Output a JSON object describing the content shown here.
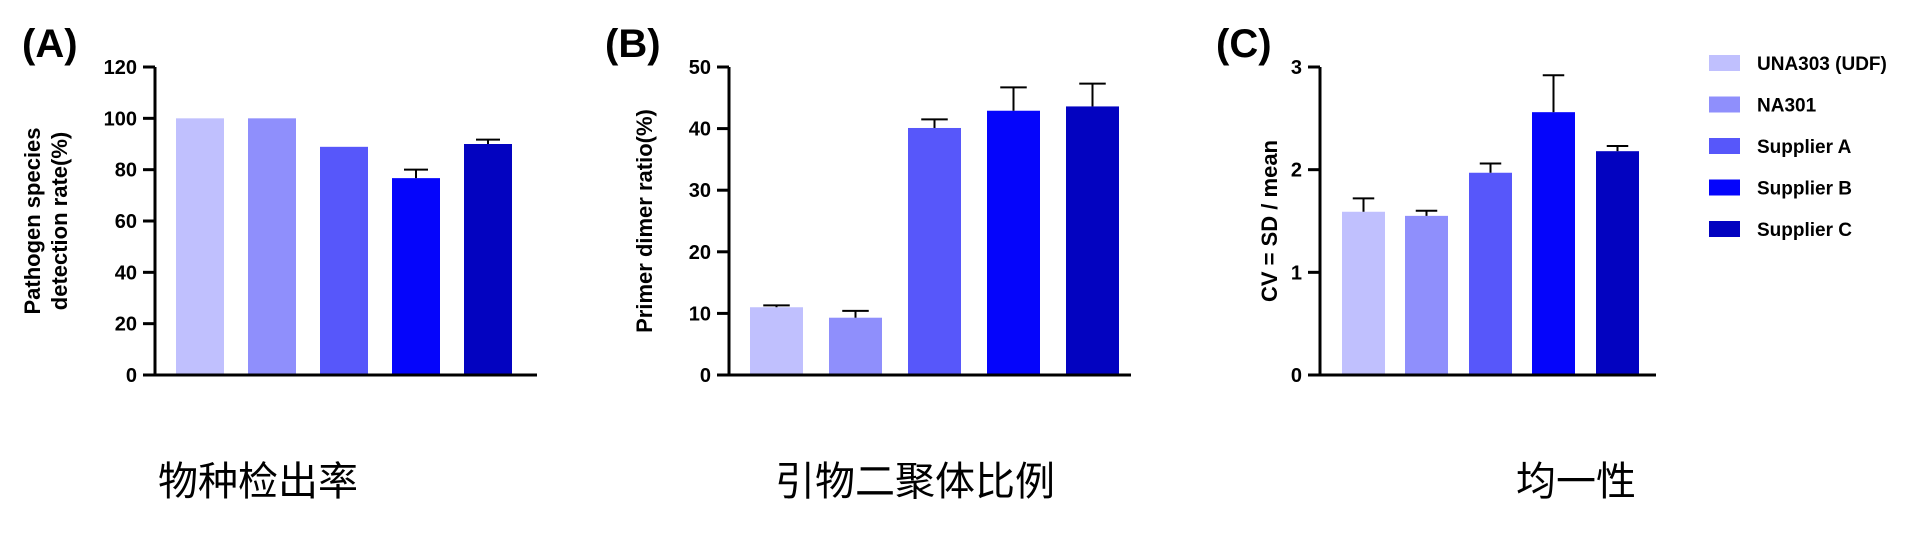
{
  "legend": {
    "position": "right",
    "entries": [
      {
        "label": "UNA303 (UDF)",
        "color": "#c0c0fe"
      },
      {
        "label": "NA301",
        "color": "#8f8ffc"
      },
      {
        "label": "Supplier A",
        "color": "#5757fa"
      },
      {
        "label": "Supplier B",
        "color": "#0505fb"
      },
      {
        "label": "Supplier C",
        "color": "#0303c0"
      }
    ]
  },
  "chart_data": [
    {
      "type": "bar",
      "panel_label": "(A)",
      "ylabel_lines": [
        "Pathogen species",
        "detection rate(%)"
      ],
      "caption": "物种检出率",
      "ylim": [
        0,
        120
      ],
      "yticks": [
        "0",
        "20",
        "40",
        "60",
        "80",
        "100",
        "120"
      ],
      "categories": [
        "UNA303 (UDF)",
        "NA301",
        "Supplier A",
        "Supplier B",
        "Supplier C"
      ],
      "values": [
        100,
        100,
        88.9,
        76.7,
        90.0
      ],
      "errors": [
        0,
        0,
        0,
        3.3,
        1.7
      ]
    },
    {
      "type": "bar",
      "panel_label": "(B)",
      "ylabel_lines": [
        "Primer dimer ratio(%)"
      ],
      "caption": "引物二聚体比例",
      "ylim": [
        0,
        50
      ],
      "yticks": [
        "0",
        "10",
        "20",
        "30",
        "40",
        "50"
      ],
      "categories": [
        "UNA303 (UDF)",
        "NA301",
        "Supplier A",
        "Supplier B",
        "Supplier C"
      ],
      "values": [
        11.0,
        9.3,
        40.1,
        42.9,
        43.6
      ],
      "errors": [
        0.3,
        1.1,
        1.4,
        3.8,
        3.7
      ]
    },
    {
      "type": "bar",
      "panel_label": "(C)",
      "ylabel_lines": [
        "CV = SD / mean"
      ],
      "caption": "均一性",
      "ylim": [
        0,
        3
      ],
      "yticks": [
        "0",
        "1",
        "2",
        "3"
      ],
      "categories": [
        "UNA303 (UDF)",
        "NA301",
        "Supplier A",
        "Supplier B",
        "Supplier C"
      ],
      "values": [
        1.59,
        1.55,
        1.97,
        2.56,
        2.18
      ],
      "errors": [
        0.13,
        0.05,
        0.09,
        0.36,
        0.05
      ]
    }
  ]
}
